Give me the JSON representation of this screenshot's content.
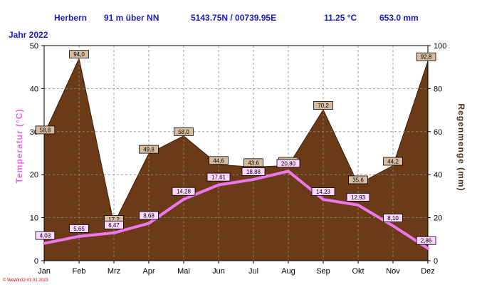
{
  "header": {
    "station": "Herbern",
    "altitude": "91 m über NN",
    "coords": "5143.75N / 00739.95E",
    "temp_avg": "11.25 °C",
    "precip_total": "653.0 mm",
    "year": "Jahr  2022"
  },
  "footer": "© WeWin32  01.01.2023",
  "colors": {
    "precip_fill": "#6b3a16",
    "precip_edge": "#3d1e08",
    "temp_line": "#ee77ee",
    "temp_label_bg": "#ffd8ff",
    "precip_label_bg": "#d8bca0",
    "grid": "#8a8a8a",
    "header_text": "#1c1cc8"
  },
  "chart_data": {
    "type": "line",
    "categories": [
      "Jan",
      "Feb",
      "Mrz",
      "Apr",
      "Mai",
      "Jun",
      "Jul",
      "Aug",
      "Sep",
      "Okt",
      "Nov",
      "Dez"
    ],
    "series": [
      {
        "name": "",
        "axis": "left",
        "style": "line",
        "values": [
          4.03,
          5.65,
          6.47,
          8.68,
          14.28,
          17.61,
          18.88,
          20.8,
          14.23,
          12.93,
          8.1,
          2.86
        ],
        "labels": [
          "4,03",
          "5,65",
          "6,47",
          "8,68",
          "14,28",
          "17,61",
          "18,88",
          "20,80",
          "14,23",
          "12,93",
          "8,10",
          "2,86"
        ]
      },
      {
        "name": "",
        "axis": "right",
        "style": "area",
        "values": [
          58.8,
          94.0,
          17.2,
          49.8,
          58.0,
          44.6,
          43.6,
          44.2,
          70.2,
          35.6,
          44.2,
          92.8
        ],
        "labels": [
          "58,8",
          "94,0",
          "17,2",
          "49,8",
          "58,0",
          "44,6",
          "43,6",
          "44,2",
          "70,2",
          "35,6",
          "44,2",
          "92,8"
        ]
      }
    ],
    "ylabel": "Temperatur  (°C)",
    "y2label": "Regenmenge  (mm)",
    "ylim": [
      0,
      50
    ],
    "y2lim": [
      0,
      100
    ],
    "yticks": [
      0,
      10,
      20,
      30,
      40,
      50
    ],
    "y2ticks": [
      0,
      20,
      40,
      60,
      80,
      100
    ],
    "grid": true
  }
}
